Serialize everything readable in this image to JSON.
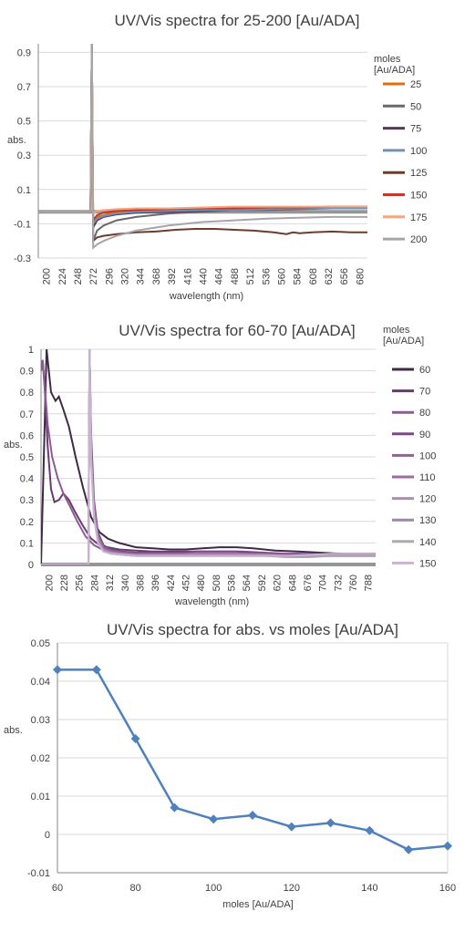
{
  "chart_data": [
    {
      "type": "line",
      "title": "UV/Vis spectra for 25-200 [Au/ADA]",
      "xlabel": "wavelength (nm)",
      "ylabel": "abs.",
      "legend_title": "moles [Au/ADA]",
      "legend_placement": "right",
      "grid": true,
      "ylim": [
        -0.3,
        0.95
      ],
      "y_ticks": [
        "0.9",
        "0.7",
        "0.5",
        "0.3",
        "0.1",
        "-0.1",
        "-0.3"
      ],
      "y_tick_values": [
        0.9,
        0.7,
        0.5,
        0.3,
        0.1,
        -0.1,
        -0.3
      ],
      "x_ticks": [
        "200",
        "224",
        "248",
        "272",
        "296",
        "320",
        "344",
        "368",
        "392",
        "416",
        "440",
        "464",
        "488",
        "512",
        "536",
        "560",
        "584",
        "608",
        "632",
        "656",
        "680"
      ],
      "xlim": [
        200,
        704
      ],
      "series": [
        {
          "name": "25",
          "color": "#E46C0A",
          "x": [
            200,
            280,
            282,
            284,
            290,
            300,
            320,
            350,
            400,
            450,
            500,
            550,
            600,
            650,
            704
          ],
          "y": [
            -0.03,
            -0.03,
            0.95,
            -0.08,
            -0.06,
            -0.05,
            -0.03,
            -0.02,
            -0.015,
            -0.01,
            -0.01,
            -0.005,
            -0.005,
            0.0,
            0.0
          ]
        },
        {
          "name": "50",
          "color": "#696969",
          "x": [
            200,
            280,
            282,
            284,
            290,
            300,
            320,
            350,
            400,
            450,
            500,
            550,
            600,
            650,
            704
          ],
          "y": [
            -0.03,
            -0.03,
            0.95,
            -0.2,
            -0.14,
            -0.11,
            -0.08,
            -0.06,
            -0.04,
            -0.03,
            -0.02,
            -0.02,
            -0.015,
            -0.01,
            -0.01
          ]
        },
        {
          "name": "75",
          "color": "#60325E",
          "x": [
            200,
            280,
            282,
            284,
            290,
            300,
            320,
            350,
            400,
            450,
            500,
            550,
            600,
            650,
            704
          ],
          "y": [
            -0.03,
            -0.03,
            0.95,
            -0.12,
            -0.08,
            -0.06,
            -0.045,
            -0.035,
            -0.03,
            -0.025,
            -0.02,
            -0.015,
            -0.01,
            -0.01,
            -0.01
          ]
        },
        {
          "name": "100",
          "color": "#6C93B8",
          "x": [
            200,
            280,
            282,
            284,
            290,
            300,
            320,
            350,
            400,
            450,
            500,
            550,
            600,
            650,
            704
          ],
          "y": [
            -0.03,
            -0.03,
            0.95,
            -0.1,
            -0.07,
            -0.055,
            -0.04,
            -0.03,
            -0.025,
            -0.02,
            -0.02,
            -0.015,
            -0.01,
            -0.01,
            -0.01
          ]
        },
        {
          "name": "125",
          "color": "#6B3D2A",
          "x": [
            200,
            280,
            282,
            284,
            290,
            300,
            320,
            350,
            380,
            410,
            440,
            470,
            500,
            530,
            560,
            580,
            590,
            600,
            620,
            650,
            680,
            704
          ],
          "y": [
            -0.03,
            -0.03,
            0.95,
            -0.2,
            -0.18,
            -0.17,
            -0.16,
            -0.15,
            -0.145,
            -0.135,
            -0.13,
            -0.13,
            -0.135,
            -0.14,
            -0.15,
            -0.16,
            -0.15,
            -0.155,
            -0.15,
            -0.145,
            -0.15,
            -0.15
          ]
        },
        {
          "name": "150",
          "color": "#C0392B",
          "x": [
            200,
            280,
            282,
            284,
            290,
            300,
            320,
            350,
            400,
            450,
            500,
            550,
            600,
            650,
            704
          ],
          "y": [
            -0.03,
            -0.03,
            0.95,
            -0.08,
            -0.05,
            -0.035,
            -0.025,
            -0.02,
            -0.015,
            -0.01,
            -0.01,
            -0.005,
            -0.005,
            0.0,
            0.0
          ]
        },
        {
          "name": "175",
          "color": "#F4A582",
          "x": [
            200,
            280,
            282,
            284,
            290,
            300,
            320,
            350,
            400,
            450,
            500,
            550,
            600,
            650,
            704
          ],
          "y": [
            -0.03,
            -0.03,
            0.95,
            -0.04,
            -0.025,
            -0.02,
            -0.015,
            -0.01,
            -0.01,
            -0.005,
            0.0,
            0.0,
            0.0,
            0.0,
            0.0
          ]
        },
        {
          "name": "200",
          "color": "#A6A6A6",
          "x": [
            200,
            280,
            282,
            284,
            290,
            300,
            320,
            350,
            400,
            450,
            500,
            550,
            600,
            650,
            704
          ],
          "y": [
            -0.03,
            -0.03,
            0.95,
            -0.24,
            -0.22,
            -0.2,
            -0.17,
            -0.14,
            -0.11,
            -0.09,
            -0.08,
            -0.07,
            -0.065,
            -0.06,
            -0.06
          ]
        }
      ]
    },
    {
      "type": "line",
      "title": "UV/Vis spectra for 60-70 [Au/ADA]",
      "xlabel": "wavelength (nm)",
      "ylabel": "abs.",
      "legend_title": "moles [Au/ADA]",
      "legend_placement": "right",
      "grid": true,
      "ylim": [
        0,
        1
      ],
      "y_ticks": [
        "1",
        "0.9",
        "0.8",
        "0.7",
        "0.6",
        "0.5",
        "0.4",
        "0.3",
        "0.2",
        "0.1",
        "0"
      ],
      "y_tick_values": [
        1,
        0.9,
        0.8,
        0.7,
        0.6,
        0.5,
        0.4,
        0.3,
        0.2,
        0.1,
        0
      ],
      "x_ticks": [
        "200",
        "228",
        "256",
        "284",
        "312",
        "340",
        "368",
        "396",
        "424",
        "452",
        "480",
        "508",
        "536",
        "564",
        "592",
        "620",
        "648",
        "676",
        "704",
        "732",
        "760",
        "788"
      ],
      "xlim": [
        200,
        800
      ],
      "series": [
        {
          "name": "60",
          "color": "#3F2A47",
          "x": [
            200,
            205,
            210,
            218,
            226,
            232,
            240,
            250,
            262,
            275,
            290,
            305,
            320,
            340,
            370,
            400,
            430,
            460,
            490,
            520,
            550,
            580,
            620,
            660,
            700,
            740,
            780,
            800
          ],
          "y": [
            0.0,
            0.5,
            1.0,
            0.8,
            0.76,
            0.78,
            0.72,
            0.64,
            0.5,
            0.36,
            0.22,
            0.15,
            0.12,
            0.1,
            0.08,
            0.075,
            0.07,
            0.07,
            0.075,
            0.08,
            0.08,
            0.075,
            0.065,
            0.06,
            0.055,
            0.05,
            0.05,
            0.05
          ]
        },
        {
          "name": "70",
          "color": "#6B3A6E",
          "x": [
            200,
            203,
            207,
            212,
            218,
            224,
            232,
            240,
            250,
            262,
            275,
            290,
            305,
            320,
            340,
            370,
            400,
            430,
            460,
            490,
            520,
            550,
            580,
            620,
            660,
            700,
            740,
            780,
            800
          ],
          "y": [
            0.9,
            0.95,
            0.8,
            0.55,
            0.35,
            0.29,
            0.3,
            0.33,
            0.3,
            0.24,
            0.18,
            0.12,
            0.09,
            0.08,
            0.07,
            0.065,
            0.06,
            0.06,
            0.06,
            0.06,
            0.06,
            0.06,
            0.055,
            0.05,
            0.05,
            0.045,
            0.05,
            0.05,
            0.05
          ]
        },
        {
          "name": "80",
          "color": "#8E5A96",
          "x": [
            200,
            203,
            206,
            212,
            220,
            230,
            240,
            252,
            265,
            280,
            295,
            310,
            330,
            360,
            400,
            450,
            500,
            550,
            600,
            650,
            700,
            750,
            800
          ],
          "y": [
            0.9,
            0.95,
            0.85,
            0.65,
            0.5,
            0.4,
            0.33,
            0.27,
            0.2,
            0.13,
            0.09,
            0.07,
            0.06,
            0.055,
            0.05,
            0.05,
            0.05,
            0.05,
            0.05,
            0.045,
            0.045,
            0.045,
            0.045
          ]
        },
        {
          "name": "90",
          "color": "#7A4B83",
          "x": [
            200,
            285,
            287,
            290,
            295,
            302,
            312,
            325,
            345,
            370,
            400,
            440,
            480,
            520,
            560,
            600,
            640,
            680,
            720,
            760,
            800
          ],
          "y": [
            0.0,
            0.0,
            1.0,
            0.6,
            0.3,
            0.15,
            0.09,
            0.07,
            0.06,
            0.055,
            0.055,
            0.055,
            0.06,
            0.06,
            0.06,
            0.055,
            0.05,
            0.05,
            0.045,
            0.045,
            0.045
          ]
        },
        {
          "name": "100",
          "color": "#8C6591",
          "x": [
            200,
            285,
            287,
            290,
            295,
            302,
            312,
            325,
            345,
            370,
            400,
            440,
            480,
            520,
            560,
            600,
            640,
            680,
            720,
            760,
            800
          ],
          "y": [
            0.0,
            0.0,
            1.0,
            0.55,
            0.28,
            0.14,
            0.08,
            0.065,
            0.055,
            0.05,
            0.05,
            0.05,
            0.05,
            0.05,
            0.05,
            0.05,
            0.045,
            0.045,
            0.045,
            0.045,
            0.045
          ]
        },
        {
          "name": "110",
          "color": "#9E6CA1",
          "x": [
            200,
            285,
            287,
            290,
            295,
            302,
            312,
            325,
            345,
            370,
            400,
            440,
            480,
            520,
            560,
            600,
            640,
            680,
            720,
            760,
            800
          ],
          "y": [
            0.0,
            0.0,
            1.0,
            0.5,
            0.25,
            0.12,
            0.07,
            0.06,
            0.05,
            0.045,
            0.045,
            0.045,
            0.05,
            0.05,
            0.05,
            0.045,
            0.045,
            0.04,
            0.04,
            0.04,
            0.04
          ]
        },
        {
          "name": "120",
          "color": "#B08AB3",
          "x": [
            200,
            285,
            287,
            290,
            295,
            302,
            312,
            325,
            345,
            370,
            400,
            440,
            480,
            520,
            560,
            600,
            640,
            680,
            720,
            760,
            800
          ],
          "y": [
            0.0,
            0.0,
            1.0,
            0.5,
            0.25,
            0.12,
            0.07,
            0.055,
            0.05,
            0.045,
            0.045,
            0.045,
            0.045,
            0.045,
            0.045,
            0.045,
            0.04,
            0.04,
            0.04,
            0.04,
            0.04
          ]
        },
        {
          "name": "130",
          "color": "#9C88A8",
          "x": [
            200,
            285,
            287,
            290,
            295,
            302,
            312,
            325,
            345,
            370,
            400,
            440,
            480,
            520,
            560,
            600,
            640,
            680,
            720,
            760,
            800
          ],
          "y": [
            0.0,
            0.0,
            1.0,
            0.5,
            0.24,
            0.11,
            0.065,
            0.05,
            0.045,
            0.04,
            0.04,
            0.04,
            0.04,
            0.04,
            0.04,
            0.04,
            0.035,
            0.035,
            0.04,
            0.04,
            0.04
          ]
        },
        {
          "name": "140",
          "color": "#ACACAC",
          "x": [
            200,
            285,
            287,
            290,
            295,
            302,
            312,
            325,
            345,
            370,
            400,
            440,
            480,
            520,
            560,
            600,
            640,
            680,
            720,
            760,
            800
          ],
          "y": [
            0.0,
            0.0,
            1.0,
            0.48,
            0.22,
            0.1,
            0.06,
            0.05,
            0.045,
            0.04,
            0.04,
            0.04,
            0.04,
            0.04,
            0.04,
            0.04,
            0.04,
            0.04,
            0.04,
            0.04,
            0.04
          ]
        },
        {
          "name": "150",
          "color": "#C9B3D1",
          "x": [
            200,
            285,
            287,
            290,
            295,
            302,
            312,
            325,
            345,
            370,
            400,
            440,
            480,
            520,
            560,
            600,
            640,
            680,
            720,
            760,
            800
          ],
          "y": [
            0.0,
            0.0,
            1.0,
            0.48,
            0.22,
            0.1,
            0.06,
            0.05,
            0.045,
            0.04,
            0.04,
            0.04,
            0.04,
            0.04,
            0.04,
            0.04,
            0.04,
            0.045,
            0.05,
            0.05,
            0.05
          ]
        }
      ]
    },
    {
      "type": "line",
      "title": "UV/Vis spectra for abs. vs moles [Au/ADA]",
      "xlabel": "moles [Au/ADA]",
      "ylabel": "abs.",
      "grid": true,
      "ylim": [
        -0.01,
        0.05
      ],
      "xlim": [
        60,
        160
      ],
      "y_ticks": [
        "0.05",
        "0.04",
        "0.03",
        "0.02",
        "0.01",
        "0",
        "-0.01"
      ],
      "y_tick_values": [
        0.05,
        0.04,
        0.03,
        0.02,
        0.01,
        0,
        -0.01
      ],
      "x_ticks": [
        "60",
        "80",
        "100",
        "120",
        "140",
        "160"
      ],
      "x_tick_values": [
        60,
        80,
        100,
        120,
        140,
        160
      ],
      "series": [
        {
          "name": "",
          "color": "#4F81BD",
          "marker": "diamond",
          "x": [
            60,
            70,
            80,
            90,
            100,
            110,
            120,
            130,
            140,
            150,
            160
          ],
          "y": [
            0.043,
            0.043,
            0.025,
            0.007,
            0.004,
            0.005,
            0.002,
            0.003,
            0.001,
            -0.004,
            -0.003
          ]
        }
      ]
    }
  ]
}
